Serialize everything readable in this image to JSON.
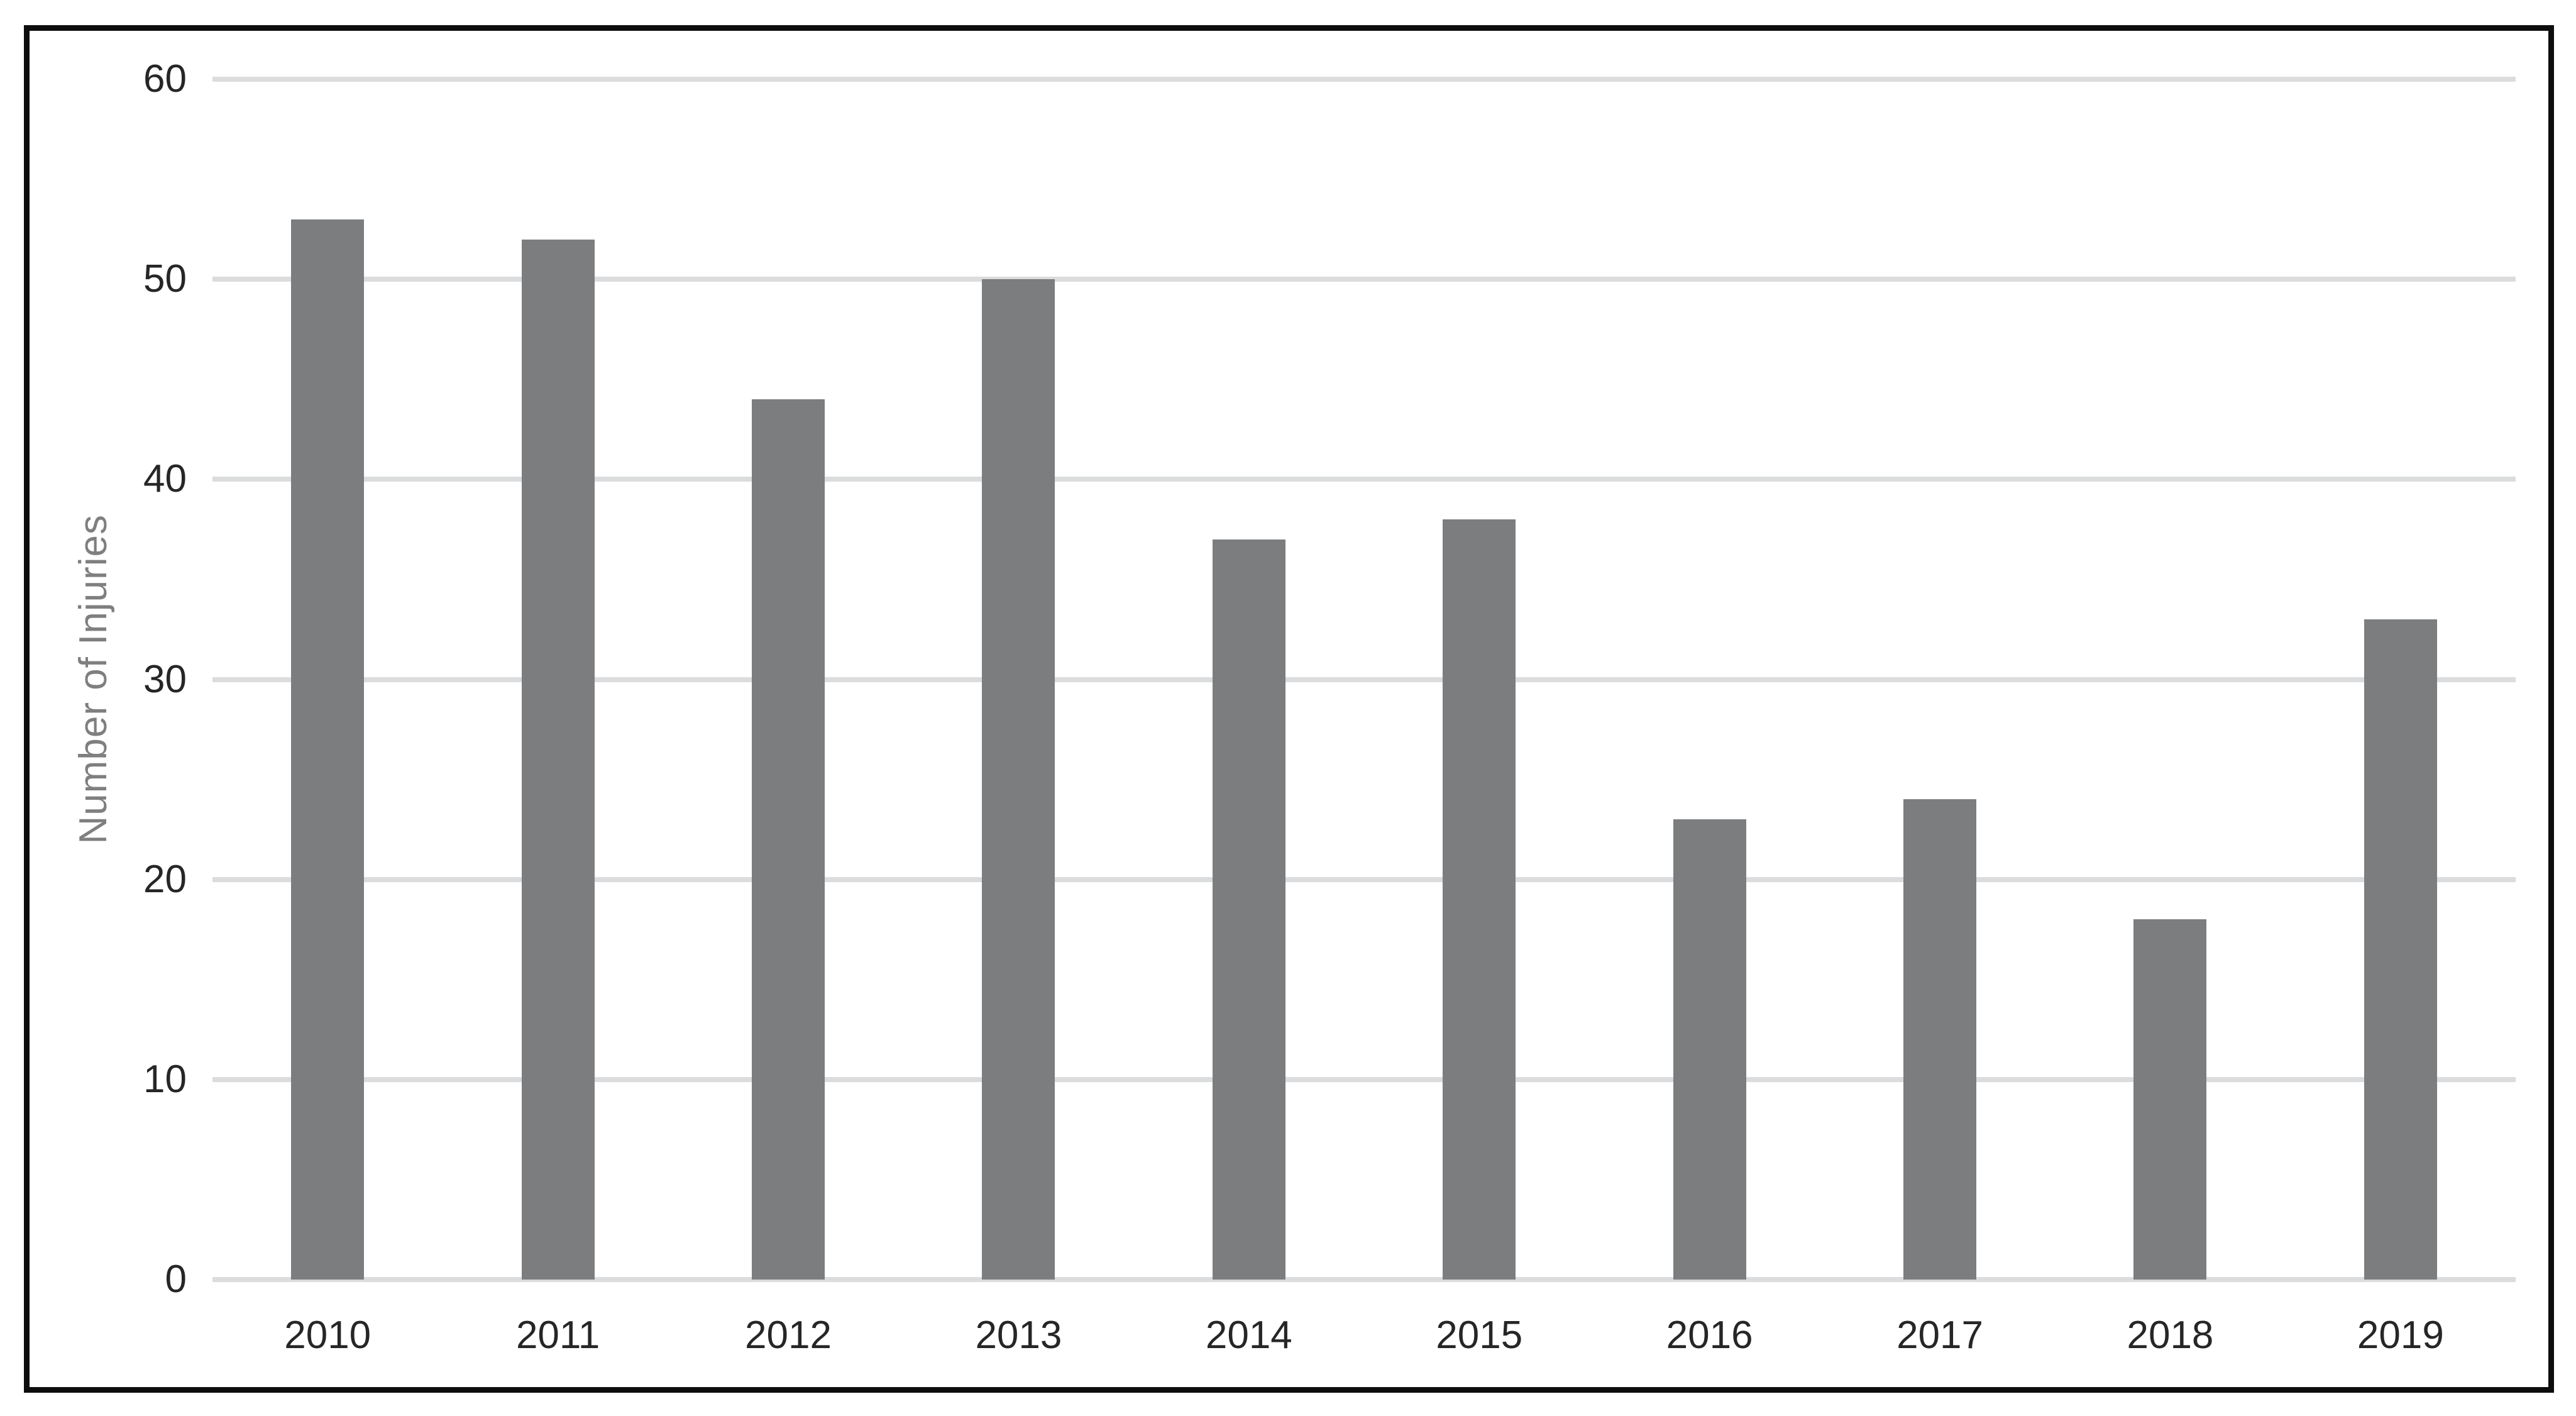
{
  "chart_data": {
    "type": "bar",
    "title": "",
    "categories": [
      "2010",
      "2011",
      "2012",
      "2013",
      "2014",
      "2015",
      "2016",
      "2017",
      "2018",
      "2019"
    ],
    "values": [
      53,
      52,
      44,
      50,
      37,
      38,
      23,
      24,
      18,
      33
    ],
    "xlabel": "",
    "ylabel": "Number of Injuries",
    "ylim": [
      0,
      60
    ],
    "yticks": [
      0,
      10,
      20,
      30,
      40,
      50,
      60
    ],
    "grid": "horizontal",
    "legend": "none",
    "colors": {
      "bar": "#7C7D7F",
      "gridline": "#DBDCDE",
      "tick_label": "#262626",
      "axis_title": "#7F7F7F",
      "frame_border": "#0D0D0D",
      "background": "#FFFFFF"
    }
  }
}
